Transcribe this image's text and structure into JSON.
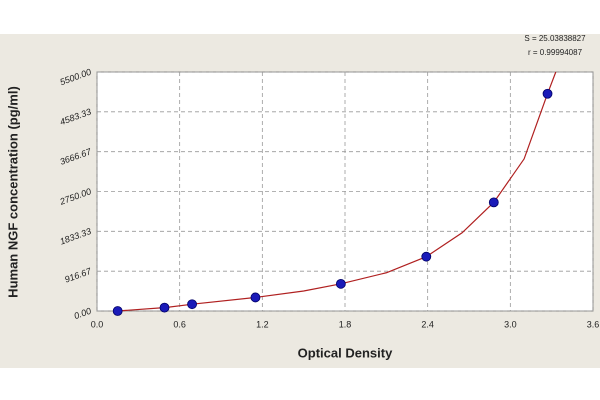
{
  "chart_data": {
    "type": "scatter",
    "annotations": [
      "S = 25.03838827",
      "r = 0.99994087"
    ],
    "xlabel": "Optical Density",
    "ylabel": "Human NGF concentration (pg/ml)",
    "xlim": [
      0,
      3.6
    ],
    "xticks": [
      {
        "value": 0,
        "label": "0.0"
      },
      0.6,
      1.2,
      1.8,
      2.4,
      {
        "value": 3,
        "label": "3.0"
      },
      3.6
    ],
    "ylim": [
      0,
      5500
    ],
    "yticks": [
      {
        "value": 0,
        "label": "0.00"
      },
      916.67,
      1833.33,
      {
        "value": 2750,
        "label": "2750.00"
      },
      3666.67,
      4583.33,
      {
        "value": 5500,
        "label": "5500.00"
      }
    ],
    "grid": true,
    "series": [
      {
        "color": "#1a1ab8",
        "x": [
          0.15,
          0.49,
          0.69,
          1.15,
          1.77,
          2.39,
          2.88,
          3.27
        ],
        "values": [
          0,
          78,
          156,
          312,
          625,
          1250,
          2500,
          5000
        ]
      },
      {
        "color": "#b02020",
        "line": true,
        "x": [
          0.15,
          0.5,
          0.7,
          1.15,
          1.5,
          1.77,
          2.1,
          2.39,
          2.65,
          2.88,
          3.1,
          3.27,
          3.33
        ],
        "values": [
          0,
          80,
          160,
          312,
          460,
          625,
          880,
          1250,
          1800,
          2500,
          3500,
          5000,
          5500
        ]
      }
    ]
  }
}
